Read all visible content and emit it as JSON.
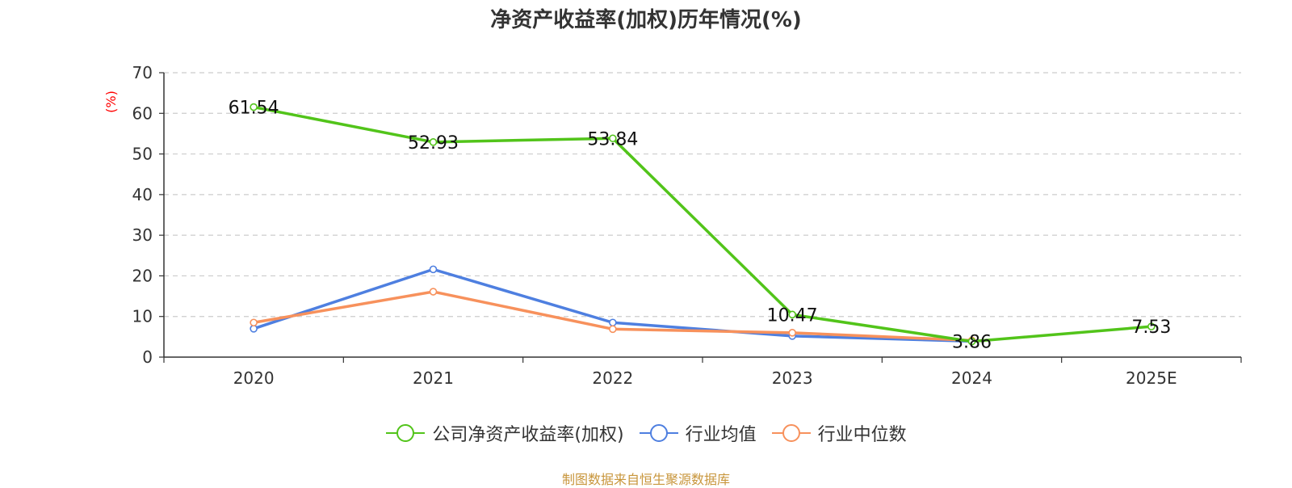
{
  "title": "净资产收益率(加权)历年情况(%)",
  "source": "制图数据来自恒生聚源数据库",
  "colors": {
    "company": "#52c41a",
    "industry_avg": "#4e7fe0",
    "industry_median": "#f7915c",
    "source_text": "#c8963c",
    "unit_label": "#ff0000"
  },
  "chart_data": {
    "type": "line",
    "title": "净资产收益率(加权)历年情况(%)",
    "ylabel": "(%)",
    "xlabel": "",
    "ylim": [
      0,
      70
    ],
    "yticks": [
      0,
      10,
      20,
      30,
      40,
      50,
      60,
      70
    ],
    "categories": [
      "2020",
      "2021",
      "2022",
      "2023",
      "2024",
      "2025E"
    ],
    "grid": true,
    "legend_position": "bottom",
    "series": [
      {
        "name": "公司净资产收益率(加权)",
        "color_key": "company",
        "values": [
          61.54,
          52.93,
          53.84,
          10.47,
          3.86,
          7.53
        ],
        "labels": [
          "61.54",
          "52.93",
          "53.84",
          "10.47",
          "3.86",
          "7.53"
        ]
      },
      {
        "name": "行业均值",
        "color_key": "industry_avg",
        "values": [
          7.0,
          21.6,
          8.5,
          5.2,
          3.9,
          null
        ]
      },
      {
        "name": "行业中位数",
        "color_key": "industry_median",
        "values": [
          8.5,
          16.1,
          6.9,
          6.0,
          4.1,
          null
        ]
      }
    ]
  }
}
